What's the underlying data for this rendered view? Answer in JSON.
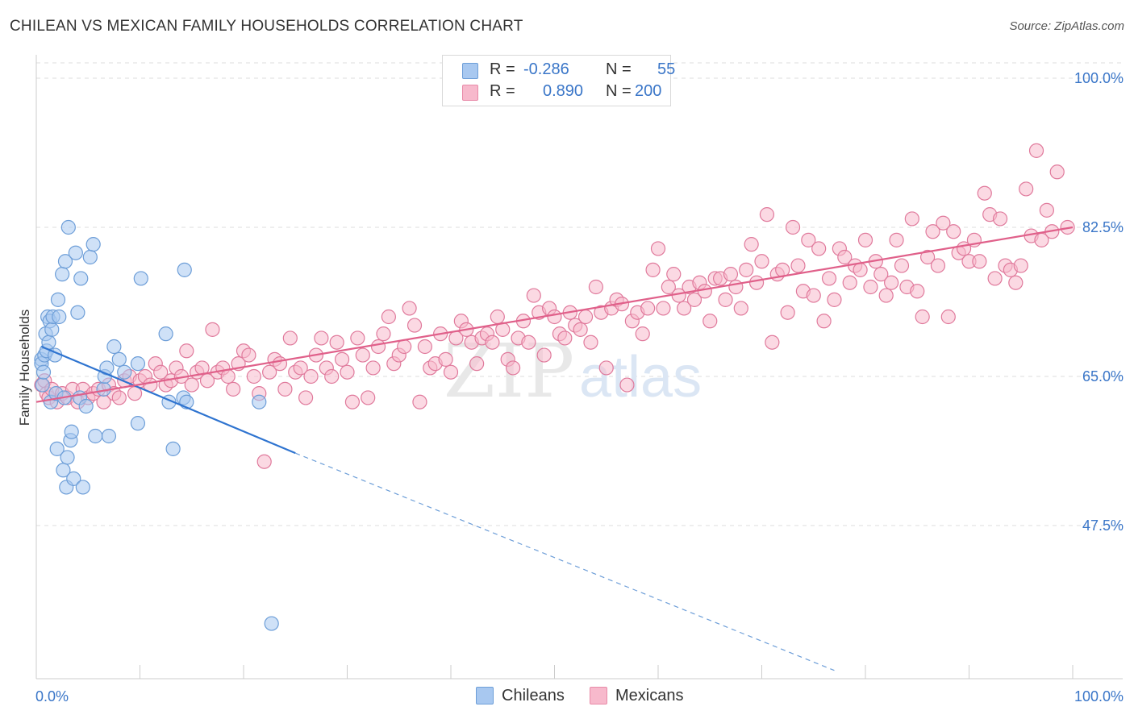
{
  "title": "CHILEAN VS MEXICAN FAMILY HOUSEHOLDS CORRELATION CHART",
  "source": "Source: ZipAtlas.com",
  "watermark": {
    "zip": "ZIP",
    "atlas": "atlas"
  },
  "legend_stats": [
    {
      "r_label": "R =",
      "r_value": "-0.286",
      "n_label": "N =",
      "n_value": "55",
      "color": "#a8c8f0",
      "border": "#6d9ed8"
    },
    {
      "r_label": "R =",
      "r_value": "0.890",
      "n_label": "N =",
      "n_value": "200",
      "color": "#f7b9cc",
      "border": "#e88aa8"
    }
  ],
  "bottom_legend": [
    {
      "label": "Chileans",
      "color": "#a8c8f0",
      "border": "#6d9ed8"
    },
    {
      "label": "Mexicans",
      "color": "#f7b9cc",
      "border": "#e88aa8"
    }
  ],
  "chart_data": {
    "type": "scatter",
    "ylabel": "Family Households",
    "xlabel": "",
    "x_tick_labels": [
      "0.0%",
      "100.0%"
    ],
    "y_tick_labels": [
      "100.0%",
      "82.5%",
      "65.0%",
      "47.5%"
    ],
    "y_ticks": [
      100.0,
      82.5,
      65.0,
      47.5
    ],
    "xlim": [
      0,
      100
    ],
    "ylim": [
      31,
      102
    ],
    "grid": true,
    "series": [
      {
        "name": "Chileans",
        "color": "#6d9ed8",
        "fill": "#a8c8f0",
        "points": [
          [
            0.5,
            67.0
          ],
          [
            0.5,
            66.5
          ],
          [
            0.6,
            64.0
          ],
          [
            0.7,
            65.5
          ],
          [
            0.8,
            67.5
          ],
          [
            0.9,
            70.0
          ],
          [
            1.0,
            68.0
          ],
          [
            1.1,
            72.0
          ],
          [
            1.2,
            69.0
          ],
          [
            1.3,
            71.5
          ],
          [
            1.4,
            62.0
          ],
          [
            1.5,
            70.5
          ],
          [
            1.6,
            72.0
          ],
          [
            1.8,
            67.5
          ],
          [
            1.9,
            63.0
          ],
          [
            2.0,
            56.5
          ],
          [
            2.1,
            74.0
          ],
          [
            2.2,
            72.0
          ],
          [
            2.5,
            77.0
          ],
          [
            2.6,
            54.0
          ],
          [
            2.7,
            62.5
          ],
          [
            2.8,
            78.5
          ],
          [
            2.9,
            52.0
          ],
          [
            3.0,
            55.5
          ],
          [
            3.3,
            57.5
          ],
          [
            3.4,
            58.5
          ],
          [
            3.6,
            53.0
          ],
          [
            3.8,
            79.5
          ],
          [
            4.0,
            72.5
          ],
          [
            4.2,
            62.5
          ],
          [
            4.3,
            76.5
          ],
          [
            4.5,
            52.0
          ],
          [
            4.8,
            61.5
          ],
          [
            5.2,
            79.0
          ],
          [
            5.5,
            80.5
          ],
          [
            5.7,
            58.0
          ],
          [
            6.5,
            63.5
          ],
          [
            6.6,
            65.0
          ],
          [
            6.8,
            66.0
          ],
          [
            7.0,
            58.0
          ],
          [
            7.5,
            68.5
          ],
          [
            8.0,
            67.0
          ],
          [
            8.5,
            65.5
          ],
          [
            9.8,
            59.5
          ],
          [
            9.8,
            66.5
          ],
          [
            10.1,
            76.5
          ],
          [
            12.5,
            70.0
          ],
          [
            12.8,
            62.0
          ],
          [
            13.2,
            56.5
          ],
          [
            14.2,
            62.5
          ],
          [
            14.3,
            77.5
          ],
          [
            14.5,
            62.0
          ],
          [
            21.5,
            62.0
          ],
          [
            22.7,
            36.0
          ],
          [
            3.1,
            82.5
          ]
        ],
        "trend": {
          "x0": 0.5,
          "y0": 68.5,
          "x1": 25.0,
          "y1": 56.0,
          "dash_to_x": 77.0,
          "dash_to_y": 30.5
        }
      },
      {
        "name": "Mexicans",
        "color": "#e07a9c",
        "fill": "#f7b9cc",
        "points": [
          [
            0.5,
            64.0
          ],
          [
            0.8,
            64.5
          ],
          [
            1.0,
            63.0
          ],
          [
            1.2,
            62.5
          ],
          [
            1.5,
            63.5
          ],
          [
            2.0,
            62.0
          ],
          [
            2.5,
            63.0
          ],
          [
            3.0,
            62.5
          ],
          [
            3.5,
            63.5
          ],
          [
            4.0,
            62.0
          ],
          [
            4.5,
            63.5
          ],
          [
            5.0,
            62.5
          ],
          [
            5.5,
            63.0
          ],
          [
            6.0,
            63.5
          ],
          [
            6.5,
            62.0
          ],
          [
            7.0,
            64.0
          ],
          [
            7.5,
            63.0
          ],
          [
            8.0,
            62.5
          ],
          [
            8.5,
            64.5
          ],
          [
            9.0,
            65.0
          ],
          [
            9.5,
            63.0
          ],
          [
            10.0,
            64.5
          ],
          [
            10.5,
            65.0
          ],
          [
            11.0,
            64.0
          ],
          [
            11.5,
            66.5
          ],
          [
            12.0,
            65.5
          ],
          [
            12.5,
            64.0
          ],
          [
            13.0,
            64.5
          ],
          [
            13.5,
            66.0
          ],
          [
            14.0,
            65.0
          ],
          [
            14.5,
            68.0
          ],
          [
            15.0,
            64.0
          ],
          [
            15.5,
            65.5
          ],
          [
            16.0,
            66.0
          ],
          [
            16.5,
            64.5
          ],
          [
            17.0,
            70.5
          ],
          [
            17.5,
            65.5
          ],
          [
            18.0,
            66.0
          ],
          [
            18.5,
            65.0
          ],
          [
            19.0,
            63.5
          ],
          [
            19.5,
            66.5
          ],
          [
            20.0,
            68.0
          ],
          [
            20.5,
            67.5
          ],
          [
            21.0,
            65.0
          ],
          [
            21.5,
            63.0
          ],
          [
            22.0,
            55.0
          ],
          [
            22.5,
            65.5
          ],
          [
            23.0,
            67.0
          ],
          [
            23.5,
            66.5
          ],
          [
            24.0,
            63.5
          ],
          [
            24.5,
            69.5
          ],
          [
            25.0,
            65.5
          ],
          [
            25.5,
            66.0
          ],
          [
            26.0,
            62.5
          ],
          [
            26.5,
            65.0
          ],
          [
            27.0,
            67.5
          ],
          [
            27.5,
            69.5
          ],
          [
            28.0,
            66.0
          ],
          [
            28.5,
            65.0
          ],
          [
            29.0,
            69.0
          ],
          [
            29.5,
            67.0
          ],
          [
            30.0,
            65.5
          ],
          [
            30.5,
            62.0
          ],
          [
            31.0,
            69.5
          ],
          [
            31.5,
            67.5
          ],
          [
            32.0,
            62.5
          ],
          [
            32.5,
            66.0
          ],
          [
            33.0,
            68.5
          ],
          [
            33.5,
            70.0
          ],
          [
            34.0,
            72.0
          ],
          [
            34.5,
            66.5
          ],
          [
            35.0,
            67.5
          ],
          [
            35.5,
            68.5
          ],
          [
            36.0,
            73.0
          ],
          [
            36.5,
            71.0
          ],
          [
            37.0,
            62.0
          ],
          [
            37.5,
            68.5
          ],
          [
            38.0,
            66.0
          ],
          [
            38.5,
            66.5
          ],
          [
            39.0,
            70.0
          ],
          [
            39.5,
            67.0
          ],
          [
            40.0,
            65.5
          ],
          [
            40.5,
            69.5
          ],
          [
            41.0,
            71.5
          ],
          [
            41.5,
            70.5
          ],
          [
            42.0,
            69.0
          ],
          [
            42.5,
            66.5
          ],
          [
            43.0,
            69.5
          ],
          [
            43.5,
            70.0
          ],
          [
            44.0,
            69.0
          ],
          [
            44.5,
            72.0
          ],
          [
            45.0,
            70.5
          ],
          [
            45.5,
            67.0
          ],
          [
            46.0,
            66.0
          ],
          [
            46.5,
            69.5
          ],
          [
            47.0,
            71.5
          ],
          [
            47.5,
            69.0
          ],
          [
            48.0,
            74.5
          ],
          [
            48.5,
            72.5
          ],
          [
            49.0,
            67.5
          ],
          [
            49.5,
            73.0
          ],
          [
            50.0,
            72.0
          ],
          [
            50.5,
            70.0
          ],
          [
            51.0,
            69.5
          ],
          [
            51.5,
            72.5
          ],
          [
            52.0,
            71.0
          ],
          [
            52.5,
            70.5
          ],
          [
            53.0,
            72.0
          ],
          [
            53.5,
            69.0
          ],
          [
            54.0,
            75.5
          ],
          [
            54.5,
            72.5
          ],
          [
            55.0,
            66.0
          ],
          [
            55.5,
            73.0
          ],
          [
            56.0,
            74.0
          ],
          [
            56.5,
            73.5
          ],
          [
            57.0,
            64.0
          ],
          [
            57.5,
            71.5
          ],
          [
            58.0,
            72.5
          ],
          [
            58.5,
            70.0
          ],
          [
            59.0,
            73.0
          ],
          [
            59.5,
            77.5
          ],
          [
            60.0,
            80.0
          ],
          [
            60.5,
            73.0
          ],
          [
            61.0,
            75.5
          ],
          [
            61.5,
            77.0
          ],
          [
            62.0,
            74.5
          ],
          [
            62.5,
            73.0
          ],
          [
            63.0,
            75.5
          ],
          [
            63.5,
            74.0
          ],
          [
            64.0,
            76.0
          ],
          [
            64.5,
            75.0
          ],
          [
            65.0,
            71.5
          ],
          [
            65.5,
            76.5
          ],
          [
            66.0,
            76.5
          ],
          [
            66.5,
            74.0
          ],
          [
            67.0,
            77.0
          ],
          [
            67.5,
            75.5
          ],
          [
            68.0,
            73.0
          ],
          [
            68.5,
            77.5
          ],
          [
            69.0,
            80.5
          ],
          [
            69.5,
            76.0
          ],
          [
            70.0,
            78.5
          ],
          [
            70.5,
            84.0
          ],
          [
            71.0,
            69.0
          ],
          [
            71.5,
            77.0
          ],
          [
            72.0,
            77.5
          ],
          [
            72.5,
            72.5
          ],
          [
            73.0,
            82.5
          ],
          [
            73.5,
            78.0
          ],
          [
            74.0,
            75.0
          ],
          [
            74.5,
            81.0
          ],
          [
            75.0,
            74.5
          ],
          [
            75.5,
            80.0
          ],
          [
            76.0,
            71.5
          ],
          [
            76.5,
            76.5
          ],
          [
            77.0,
            74.0
          ],
          [
            77.5,
            80.0
          ],
          [
            78.0,
            79.0
          ],
          [
            78.5,
            76.0
          ],
          [
            79.0,
            78.0
          ],
          [
            79.5,
            77.5
          ],
          [
            80.0,
            81.0
          ],
          [
            80.5,
            75.5
          ],
          [
            81.0,
            78.5
          ],
          [
            81.5,
            77.0
          ],
          [
            82.0,
            74.5
          ],
          [
            82.5,
            76.0
          ],
          [
            83.0,
            81.0
          ],
          [
            83.5,
            78.0
          ],
          [
            84.0,
            75.5
          ],
          [
            84.5,
            83.5
          ],
          [
            85.0,
            75.0
          ],
          [
            85.5,
            72.0
          ],
          [
            86.0,
            79.0
          ],
          [
            86.5,
            82.0
          ],
          [
            87.0,
            78.0
          ],
          [
            87.5,
            83.0
          ],
          [
            88.0,
            72.0
          ],
          [
            88.5,
            82.0
          ],
          [
            89.0,
            79.5
          ],
          [
            89.5,
            80.0
          ],
          [
            90.0,
            78.5
          ],
          [
            90.5,
            81.0
          ],
          [
            91.0,
            78.5
          ],
          [
            91.5,
            86.5
          ],
          [
            92.0,
            84.0
          ],
          [
            92.5,
            76.5
          ],
          [
            93.0,
            83.5
          ],
          [
            93.5,
            78.0
          ],
          [
            94.0,
            77.5
          ],
          [
            94.5,
            76.0
          ],
          [
            95.0,
            78.0
          ],
          [
            95.5,
            87.0
          ],
          [
            96.0,
            81.5
          ],
          [
            96.5,
            91.5
          ],
          [
            97.0,
            81.0
          ],
          [
            97.5,
            84.5
          ],
          [
            98.0,
            82.0
          ],
          [
            98.5,
            89.0
          ],
          [
            99.5,
            82.5
          ]
        ],
        "trend": {
          "x0": 0.0,
          "y0": 62.0,
          "x1": 100.0,
          "y1": 82.5
        }
      }
    ]
  }
}
